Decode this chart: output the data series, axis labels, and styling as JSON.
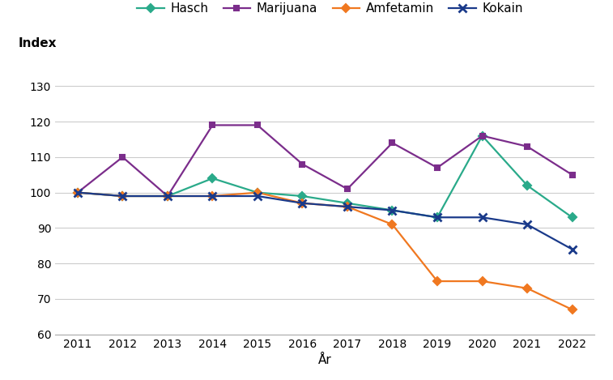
{
  "years": [
    2011,
    2012,
    2013,
    2014,
    2015,
    2016,
    2017,
    2018,
    2019,
    2020,
    2021,
    2022
  ],
  "hasch": [
    100,
    99,
    99,
    104,
    100,
    99,
    97,
    95,
    93,
    116,
    102,
    93
  ],
  "marijuana": [
    100,
    110,
    99,
    119,
    119,
    108,
    101,
    114,
    107,
    116,
    113,
    105
  ],
  "amfetamin": [
    100,
    99,
    99,
    99,
    100,
    97,
    96,
    91,
    75,
    75,
    73,
    67
  ],
  "kokain": [
    100,
    99,
    99,
    99,
    99,
    97,
    96,
    95,
    93,
    93,
    91,
    84
  ],
  "colors": {
    "hasch": "#2aaa8a",
    "marijuana": "#7b2d8b",
    "amfetamin": "#f07820",
    "kokain": "#1a3a8a"
  },
  "markers": {
    "hasch": "D",
    "marijuana": "s",
    "amfetamin": "D",
    "kokain": "x"
  },
  "ylabel": "Index",
  "xlabel": "År",
  "ylim": [
    60,
    135
  ],
  "yticks": [
    60,
    70,
    80,
    90,
    100,
    110,
    120,
    130
  ],
  "axis_fontsize": 11,
  "legend_fontsize": 11,
  "tick_fontsize": 10,
  "background_color": "#ffffff"
}
